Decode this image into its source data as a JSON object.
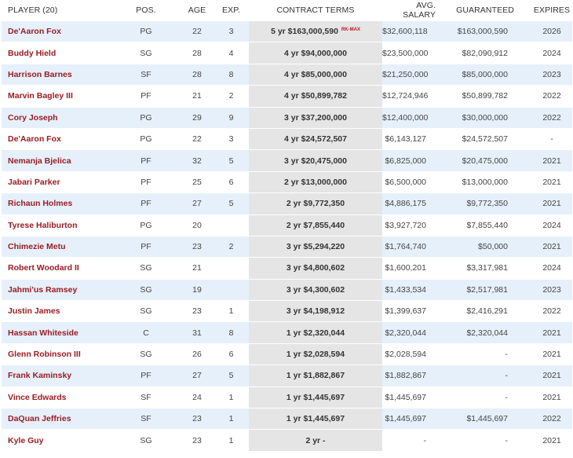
{
  "columns": {
    "player": "PLAYER (20)",
    "pos": "POS.",
    "age": "AGE",
    "exp": "EXP.",
    "contract": "CONTRACT TERMS",
    "avg_salary": "AVG. SALARY",
    "guaranteed": "GUARANTEED",
    "expires": "EXPIRES"
  },
  "rows": [
    {
      "player": "De'Aaron Fox",
      "pos": "PG",
      "age": "22",
      "exp": "3",
      "contract": "5 yr $163,000,590",
      "tag": "RK-MAX",
      "avg": "$32,600,118",
      "guaranteed": "$163,000,590",
      "expires": "2026"
    },
    {
      "player": "Buddy Hield",
      "pos": "SG",
      "age": "28",
      "exp": "4",
      "contract": "4 yr $94,000,000",
      "tag": "",
      "avg": "$23,500,000",
      "guaranteed": "$82,090,912",
      "expires": "2024"
    },
    {
      "player": "Harrison Barnes",
      "pos": "SF",
      "age": "28",
      "exp": "8",
      "contract": "4 yr $85,000,000",
      "tag": "",
      "avg": "$21,250,000",
      "guaranteed": "$85,000,000",
      "expires": "2023"
    },
    {
      "player": "Marvin Bagley III",
      "pos": "PF",
      "age": "21",
      "exp": "2",
      "contract": "4 yr $50,899,782",
      "tag": "",
      "avg": "$12,724,946",
      "guaranteed": "$50,899,782",
      "expires": "2022"
    },
    {
      "player": "Cory Joseph",
      "pos": "PG",
      "age": "29",
      "exp": "9",
      "contract": "3 yr $37,200,000",
      "tag": "",
      "avg": "$12,400,000",
      "guaranteed": "$30,000,000",
      "expires": "2022"
    },
    {
      "player": "De'Aaron Fox",
      "pos": "PG",
      "age": "22",
      "exp": "3",
      "contract": "4 yr $24,572,507",
      "tag": "",
      "avg": "$6,143,127",
      "guaranteed": "$24,572,507",
      "expires": "-"
    },
    {
      "player": "Nemanja Bjelica",
      "pos": "PF",
      "age": "32",
      "exp": "5",
      "contract": "3 yr $20,475,000",
      "tag": "",
      "avg": "$6,825,000",
      "guaranteed": "$20,475,000",
      "expires": "2021"
    },
    {
      "player": "Jabari Parker",
      "pos": "PF",
      "age": "25",
      "exp": "6",
      "contract": "2 yr $13,000,000",
      "tag": "",
      "avg": "$6,500,000",
      "guaranteed": "$13,000,000",
      "expires": "2021"
    },
    {
      "player": "Richaun Holmes",
      "pos": "PF",
      "age": "27",
      "exp": "5",
      "contract": "2 yr $9,772,350",
      "tag": "",
      "avg": "$4,886,175",
      "guaranteed": "$9,772,350",
      "expires": "2021"
    },
    {
      "player": "Tyrese Haliburton",
      "pos": "PG",
      "age": "20",
      "exp": "",
      "contract": "2 yr $7,855,440",
      "tag": "",
      "avg": "$3,927,720",
      "guaranteed": "$7,855,440",
      "expires": "2024"
    },
    {
      "player": "Chimezie Metu",
      "pos": "PF",
      "age": "23",
      "exp": "2",
      "contract": "3 yr $5,294,220",
      "tag": "",
      "avg": "$1,764,740",
      "guaranteed": "$50,000",
      "expires": "2021"
    },
    {
      "player": "Robert Woodard II",
      "pos": "SG",
      "age": "21",
      "exp": "",
      "contract": "3 yr $4,800,602",
      "tag": "",
      "avg": "$1,600,201",
      "guaranteed": "$3,317,981",
      "expires": "2024"
    },
    {
      "player": "Jahmi'us Ramsey",
      "pos": "SG",
      "age": "19",
      "exp": "",
      "contract": "3 yr $4,300,602",
      "tag": "",
      "avg": "$1,433,534",
      "guaranteed": "$2,517,981",
      "expires": "2023"
    },
    {
      "player": "Justin James",
      "pos": "SG",
      "age": "23",
      "exp": "1",
      "contract": "3 yr $4,198,912",
      "tag": "",
      "avg": "$1,399,637",
      "guaranteed": "$2,416,291",
      "expires": "2022"
    },
    {
      "player": "Hassan Whiteside",
      "pos": "C",
      "age": "31",
      "exp": "8",
      "contract": "1 yr $2,320,044",
      "tag": "",
      "avg": "$2,320,044",
      "guaranteed": "$2,320,044",
      "expires": "2021"
    },
    {
      "player": "Glenn Robinson III",
      "pos": "SG",
      "age": "26",
      "exp": "6",
      "contract": "1 yr $2,028,594",
      "tag": "",
      "avg": "$2,028,594",
      "guaranteed": "-",
      "expires": "2021"
    },
    {
      "player": "Frank Kaminsky",
      "pos": "PF",
      "age": "27",
      "exp": "5",
      "contract": "1 yr $1,882,867",
      "tag": "",
      "avg": "$1,882,867",
      "guaranteed": "-",
      "expires": "2021"
    },
    {
      "player": "Vince Edwards",
      "pos": "SF",
      "age": "24",
      "exp": "1",
      "contract": "1 yr $1,445,697",
      "tag": "",
      "avg": "$1,445,697",
      "guaranteed": "-",
      "expires": "2021"
    },
    {
      "player": "DaQuan Jeffries",
      "pos": "SF",
      "age": "23",
      "exp": "1",
      "contract": "1 yr $1,445,697",
      "tag": "",
      "avg": "$1,445,697",
      "guaranteed": "$1,445,697",
      "expires": "2022"
    },
    {
      "player": "Kyle Guy",
      "pos": "SG",
      "age": "23",
      "exp": "1",
      "contract": "2 yr -",
      "tag": "",
      "avg": "-",
      "guaranteed": "-",
      "expires": "2021"
    }
  ]
}
